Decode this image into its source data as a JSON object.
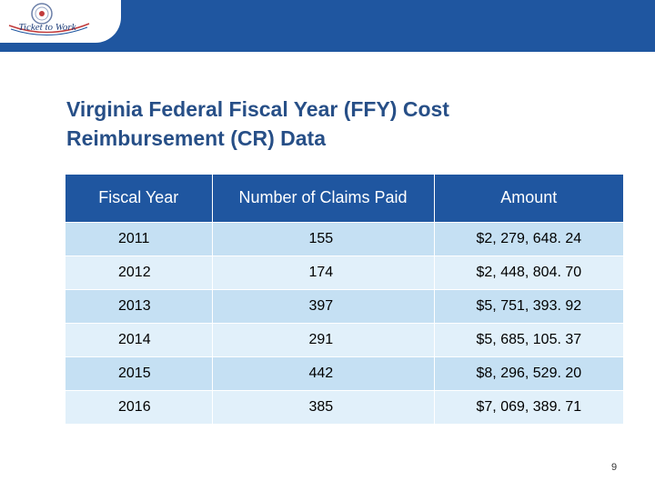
{
  "header": {
    "logo_text": "Ticket to Work"
  },
  "title": {
    "line1": "Virginia Federal Fiscal Year (FFY) Cost",
    "line2": "Reimbursement (CR) Data"
  },
  "table": {
    "headers": [
      "Fiscal Year",
      "Number of Claims Paid",
      "Amount"
    ],
    "rows": [
      [
        "2011",
        "155",
        "$2, 279, 648. 24"
      ],
      [
        "2012",
        "174",
        "$2, 448, 804. 70"
      ],
      [
        "2013",
        "397",
        "$5, 751, 393. 92"
      ],
      [
        "2014",
        "291",
        "$5, 685, 105. 37"
      ],
      [
        "2015",
        "442",
        "$8, 296, 529. 20"
      ],
      [
        "2016",
        "385",
        "$7, 069, 389. 71"
      ]
    ]
  },
  "footer": {
    "page_number": "9"
  },
  "colors": {
    "brand_blue": "#1f56a0",
    "title_blue": "#274f87",
    "row_dark": "#c5e0f3",
    "row_light": "#e1f0fa"
  }
}
